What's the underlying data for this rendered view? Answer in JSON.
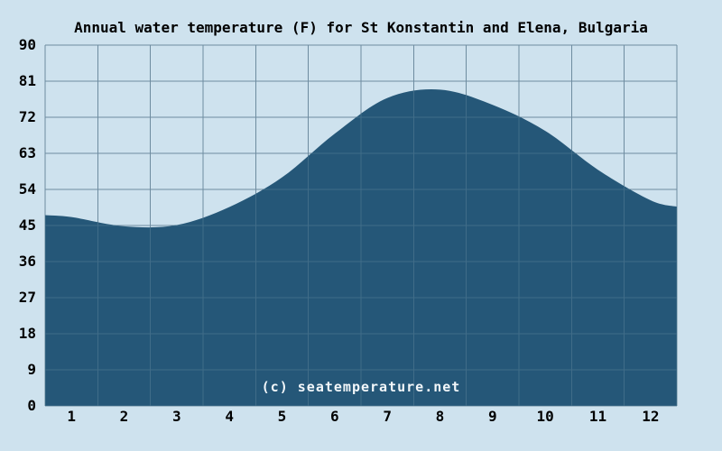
{
  "title": "Annual water temperature (F) for St Konstantin and Elena, Bulgaria",
  "watermark": "(c) seatemperature.net",
  "colors": {
    "background": "#cee2ee",
    "area_fill": "#255778",
    "grid_on_background": "#6e8ca0",
    "grid_on_fill": "#406c88",
    "text": "#000000",
    "watermark_text": "#f2f7fa"
  },
  "chart_data": {
    "type": "area",
    "title": "Annual water temperature (F) for St Konstantin and Elena, Bulgaria",
    "xlabel": "",
    "ylabel": "",
    "x": [
      1,
      2,
      3,
      4,
      5,
      6,
      7,
      8,
      9,
      10,
      11,
      12
    ],
    "values": [
      47.1,
      44.8,
      45.1,
      49.6,
      57.0,
      67.9,
      76.8,
      78.9,
      75.1,
      68.6,
      58.9,
      51.3
    ],
    "edge_start_value": 47.6,
    "edge_end_value": 49.7,
    "x_tick_labels": [
      "1",
      "2",
      "3",
      "4",
      "5",
      "6",
      "7",
      "8",
      "9",
      "10",
      "11",
      "12"
    ],
    "y_tick_labels": [
      "90",
      "81",
      "72",
      "63",
      "54",
      "45",
      "36",
      "27",
      "18",
      "9",
      "0"
    ],
    "ylim": [
      0,
      90
    ],
    "y_step": 9,
    "grid": true,
    "legend": false,
    "series_name": "Water temperature (F)"
  }
}
